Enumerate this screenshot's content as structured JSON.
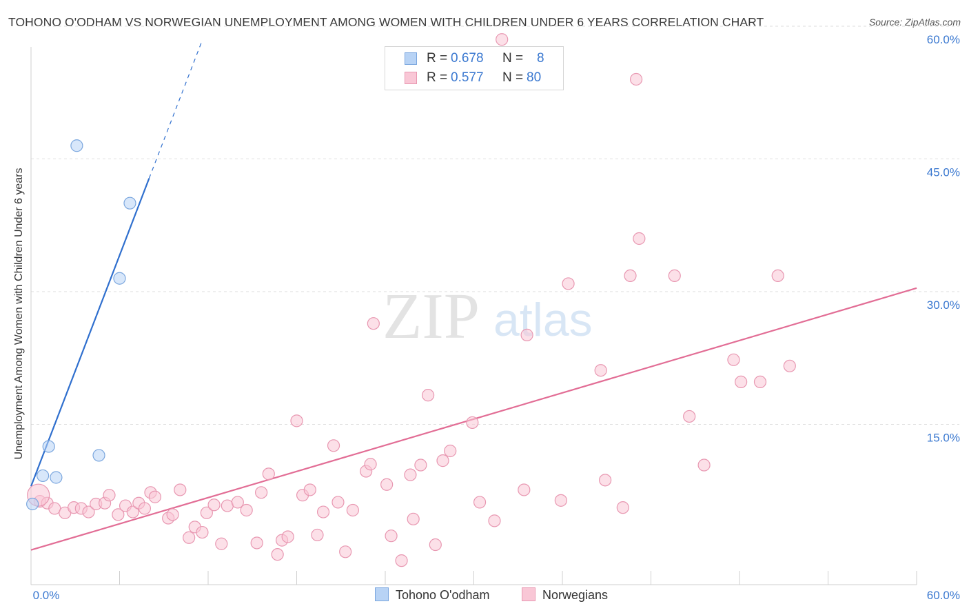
{
  "title": "TOHONO O'ODHAM VS NORWEGIAN UNEMPLOYMENT AMONG WOMEN WITH CHILDREN UNDER 6 YEARS CORRELATION CHART",
  "source": "Source: ZipAtlas.com",
  "watermark": {
    "zip": "ZIP",
    "atlas": "atlas"
  },
  "legend": {
    "rows": [
      {
        "r_label": "R =",
        "r_value": "0.678",
        "n_label": "N =",
        "n_value": "8",
        "fill": "#b8d3f5",
        "stroke": "#7aa6de"
      },
      {
        "r_label": "R =",
        "r_value": "0.577",
        "n_label": "N =",
        "n_value": "80",
        "fill": "#f9c7d6",
        "stroke": "#e897b1"
      }
    ]
  },
  "bottom_legend": [
    {
      "label": "Tohono O'odham",
      "fill": "#b8d3f5",
      "stroke": "#7aa6de"
    },
    {
      "label": "Norwegians",
      "fill": "#f9c7d6",
      "stroke": "#e897b1"
    }
  ],
  "chart_data": {
    "type": "scatter",
    "title": "TOHONO O'ODHAM VS NORWEGIAN UNEMPLOYMENT AMONG WOMEN WITH CHILDREN UNDER 6 YEARS CORRELATION CHART",
    "xlabel": "",
    "ylabel": "Unemployment Among Women with Children Under 6 years",
    "xlim": [
      0,
      60
    ],
    "ylim": [
      0,
      60
    ],
    "x_tick_labels": [
      "0.0%",
      "60.0%"
    ],
    "y_tick_labels": [
      "15.0%",
      "30.0%",
      "45.0%",
      "60.0%"
    ],
    "y_ticks": [
      15,
      30,
      45,
      60
    ],
    "series": [
      {
        "name": "Tohono O'odham",
        "color": "#7aa6de",
        "fill": "#b8d3f5",
        "line_color": "#2f6fce",
        "r": "0.678",
        "n": "8",
        "trend": {
          "x0": 0.0,
          "y0": 8.0,
          "x1": 8.0,
          "y1": 42.8,
          "dash_to_x": 11.6,
          "dash_to_y": 58.4
        },
        "points": [
          [
            0.1,
            6.0
          ],
          [
            0.8,
            9.2
          ],
          [
            1.2,
            12.5
          ],
          [
            1.7,
            9.0
          ],
          [
            4.6,
            11.5
          ],
          [
            6.0,
            31.5
          ],
          [
            6.7,
            40.0
          ],
          [
            3.1,
            46.5
          ]
        ]
      },
      {
        "name": "Norwegians",
        "color": "#e897b1",
        "fill": "#f9c7d6",
        "line_color": "#e26d95",
        "r": "0.577",
        "n": "80",
        "trend": {
          "x0": 0.0,
          "y0": 0.8,
          "x1": 60.0,
          "y1": 30.4
        },
        "points": [
          [
            0.6,
            6.3
          ],
          [
            1.1,
            6.1
          ],
          [
            1.6,
            5.5
          ],
          [
            2.3,
            5.0
          ],
          [
            2.9,
            5.6
          ],
          [
            3.4,
            5.5
          ],
          [
            3.9,
            5.1
          ],
          [
            4.4,
            6.0
          ],
          [
            5.0,
            6.1
          ],
          [
            5.3,
            7.0
          ],
          [
            5.9,
            4.8
          ],
          [
            6.4,
            5.8
          ],
          [
            6.9,
            5.1
          ],
          [
            7.3,
            6.1
          ],
          [
            7.7,
            5.5
          ],
          [
            8.1,
            7.3
          ],
          [
            8.4,
            6.8
          ],
          [
            9.3,
            4.4
          ],
          [
            9.6,
            4.8
          ],
          [
            10.1,
            7.6
          ],
          [
            10.7,
            2.2
          ],
          [
            11.1,
            3.4
          ],
          [
            11.6,
            2.8
          ],
          [
            11.9,
            5.0
          ],
          [
            12.4,
            5.9
          ],
          [
            12.9,
            1.5
          ],
          [
            13.3,
            5.8
          ],
          [
            14.0,
            6.2
          ],
          [
            14.6,
            5.3
          ],
          [
            15.3,
            1.6
          ],
          [
            15.6,
            7.3
          ],
          [
            16.1,
            9.4
          ],
          [
            16.7,
            0.3
          ],
          [
            17.0,
            1.9
          ],
          [
            17.4,
            2.3
          ],
          [
            18.0,
            15.4
          ],
          [
            18.4,
            7.0
          ],
          [
            18.9,
            7.6
          ],
          [
            19.4,
            2.5
          ],
          [
            19.8,
            5.1
          ],
          [
            20.5,
            12.6
          ],
          [
            20.8,
            6.2
          ],
          [
            21.3,
            0.6
          ],
          [
            21.8,
            5.3
          ],
          [
            22.7,
            9.7
          ],
          [
            23.0,
            10.5
          ],
          [
            23.2,
            26.4
          ],
          [
            24.1,
            8.2
          ],
          [
            24.4,
            2.4
          ],
          [
            25.1,
            -0.4
          ],
          [
            25.7,
            9.3
          ],
          [
            25.9,
            4.3
          ],
          [
            26.4,
            10.4
          ],
          [
            26.9,
            18.3
          ],
          [
            27.4,
            1.4
          ],
          [
            27.9,
            10.9
          ],
          [
            28.4,
            12.0
          ],
          [
            29.9,
            15.2
          ],
          [
            30.4,
            6.2
          ],
          [
            31.4,
            4.1
          ],
          [
            31.9,
            58.5
          ],
          [
            33.4,
            7.6
          ],
          [
            33.6,
            25.1
          ],
          [
            35.9,
            6.4
          ],
          [
            36.4,
            30.9
          ],
          [
            38.6,
            21.1
          ],
          [
            38.9,
            8.7
          ],
          [
            40.1,
            5.6
          ],
          [
            40.6,
            31.8
          ],
          [
            41.2,
            36.0
          ],
          [
            43.6,
            31.8
          ],
          [
            44.6,
            15.9
          ],
          [
            45.6,
            10.4
          ],
          [
            47.6,
            22.3
          ],
          [
            48.1,
            19.8
          ],
          [
            49.4,
            19.8
          ],
          [
            50.6,
            31.8
          ],
          [
            51.4,
            21.6
          ],
          [
            41.0,
            54.0
          ],
          [
            0.5,
            7.0
          ]
        ]
      }
    ]
  }
}
